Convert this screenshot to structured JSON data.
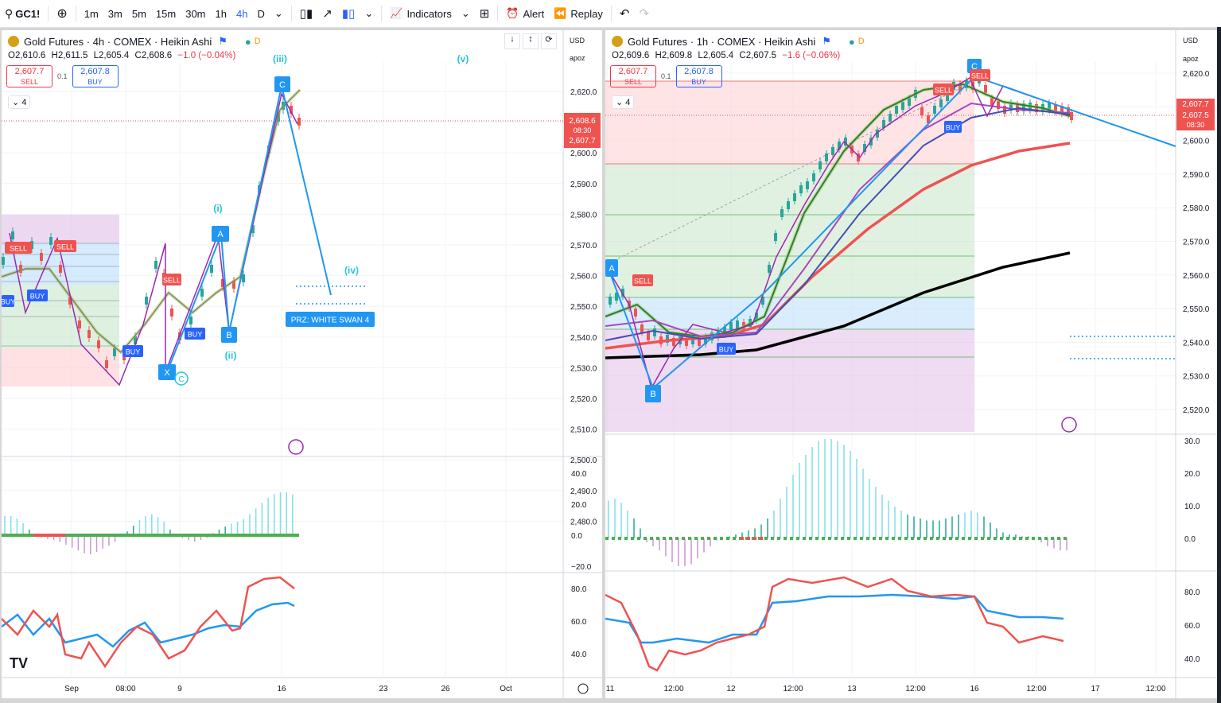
{
  "toolbar": {
    "symbol": "GC1!",
    "intervals": [
      "1m",
      "3m",
      "5m",
      "15m",
      "30m",
      "1h",
      "4h",
      "D"
    ],
    "active_interval": "4h",
    "indicators_label": "Indicators",
    "alert_label": "Alert",
    "replay_label": "Replay"
  },
  "left": {
    "title": "Gold Futures · 4h · COMEX · Heikin Ashi",
    "ohlc": {
      "o": "O2,610.6",
      "h": "H2,611.5",
      "l": "L2,605.4",
      "c": "C2,608.6",
      "chg": "−1.0 (−0.04%)"
    },
    "sell": {
      "price": "2,607.7",
      "label": "SELL"
    },
    "buy": {
      "price": "2,607.8",
      "label": "BUY"
    },
    "spread": "0.1",
    "indicator_count": "4",
    "currency": "USD",
    "scale_mode": "apoz",
    "price_ticks": [
      "2,620.0",
      "2,610.0",
      "2,600.0",
      "2,590.0",
      "2,580.0",
      "2,570.0",
      "2,560.0",
      "2,550.0",
      "2,540.0",
      "2,530.0",
      "2,520.0",
      "2,510.0",
      "2,500.0",
      "2,490.0",
      "2,480.0"
    ],
    "last_price": {
      "a": "2,608.6",
      "b": "08:30",
      "c": "2,607.7"
    },
    "osc_ticks": [
      "40.0",
      "20.0",
      "0.0",
      "−20.0"
    ],
    "rsi_ticks": [
      "80.0",
      "60.0",
      "40.0"
    ],
    "time_ticks": [
      "Sep",
      "08:00",
      "9",
      "16",
      "23",
      "26",
      "Oct"
    ],
    "wave_labels": {
      "iii": "(iii)",
      "v": "(v)",
      "i": "(i)",
      "ii": "(ii)",
      "iv": "(iv)"
    },
    "points": {
      "A": "A",
      "B": "B",
      "C": "C",
      "X": "X"
    },
    "prz": "PRZ: WHITE SWAN 4",
    "signals": {
      "sell": "SELL",
      "buy": "BUY"
    }
  },
  "right": {
    "title": "Gold Futures · 1h · COMEX · Heikin Ashi",
    "ohlc": {
      "o": "O2,609.6",
      "h": "H2,609.8",
      "l": "L2,605.4",
      "c": "C2,607.5",
      "chg": "−1.6 (−0.06%)"
    },
    "sell": {
      "price": "2,607.7",
      "label": "SELL"
    },
    "buy": {
      "price": "2,607.8",
      "label": "BUY"
    },
    "spread": "0.1",
    "indicator_count": "4",
    "currency": "USD",
    "scale_mode": "apoz",
    "price_ticks": [
      "2,620.0",
      "2,610.0",
      "2,600.0",
      "2,590.0",
      "2,580.0",
      "2,570.0",
      "2,560.0",
      "2,550.0",
      "2,540.0",
      "2,530.0",
      "2,520.0"
    ],
    "last_price": {
      "a": "2,607.7",
      "b": "2,607.5",
      "c": "08:30"
    },
    "osc_ticks": [
      "30.0",
      "20.0",
      "10.0",
      "0.0"
    ],
    "rsi_ticks": [
      "80.0",
      "60.0",
      "40.0"
    ],
    "time_ticks": [
      "11",
      "12:00",
      "12",
      "12:00",
      "13",
      "12:00",
      "16",
      "12:00",
      "17",
      "12:00"
    ],
    "points": {
      "A": "A",
      "B": "B",
      "C": "C"
    },
    "signals": {
      "sell": "SELL",
      "buy": "BUY"
    }
  },
  "colors": {
    "bull": "#26a69a",
    "bear": "#ef5350",
    "accent": "#2962ff",
    "line": "#2196f3",
    "wave": "#26c6da"
  }
}
